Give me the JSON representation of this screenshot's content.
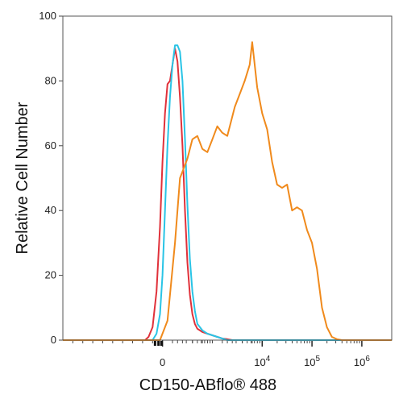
{
  "chart_data": {
    "type": "line",
    "title": "",
    "xlabel": "CD150-ABflo® 488",
    "ylabel": "Relative Cell Number",
    "ylim": [
      0,
      100
    ],
    "x_scale": "biexponential",
    "x_ticks": [
      {
        "label": "0",
        "exp": ""
      },
      {
        "label": "10",
        "exp": "4"
      },
      {
        "label": "10",
        "exp": "5"
      },
      {
        "label": "10",
        "exp": "6"
      }
    ],
    "y_ticks": [
      "0",
      "20",
      "40",
      "60",
      "80",
      "100"
    ],
    "grid": false,
    "legend": "none",
    "colors": {
      "red": "#e0313a",
      "cyan": "#29c4e6",
      "orange": "#f08a1c"
    },
    "series": [
      {
        "color": "red",
        "x": [
          -0.35,
          -0.28,
          -0.2,
          -0.12,
          -0.05,
          0.0,
          0.05,
          0.1,
          0.15,
          0.2,
          0.25,
          0.3,
          0.35,
          0.4,
          0.45,
          0.5,
          0.55,
          0.6,
          0.65,
          0.7,
          0.8,
          0.9,
          1.0,
          1.1,
          1.2,
          1.3,
          1.4
        ],
        "y": [
          0,
          1,
          4,
          15,
          35,
          55,
          70,
          79,
          80,
          85,
          90,
          86,
          75,
          60,
          40,
          24,
          14,
          8,
          5,
          3.5,
          2.5,
          2,
          1.5,
          1,
          0.5,
          0.3,
          0
        ]
      },
      {
        "color": "cyan",
        "x": [
          -0.2,
          -0.12,
          -0.05,
          0.0,
          0.05,
          0.1,
          0.15,
          0.2,
          0.25,
          0.3,
          0.35,
          0.4,
          0.45,
          0.5,
          0.55,
          0.6,
          0.65,
          0.7,
          0.8,
          0.9,
          1.0,
          1.1,
          1.2,
          1.3
        ],
        "y": [
          0,
          2,
          8,
          20,
          40,
          60,
          75,
          85,
          91,
          91,
          89,
          80,
          62,
          42,
          25,
          15,
          9,
          5,
          3,
          2,
          1.5,
          1,
          0.5,
          0
        ]
      },
      {
        "color": "orange",
        "x": [
          -0.05,
          0.1,
          0.25,
          0.35,
          0.5,
          0.6,
          0.7,
          0.8,
          0.9,
          1.0,
          1.1,
          1.2,
          1.3,
          1.35,
          1.45,
          1.55,
          1.65,
          1.75,
          1.8,
          1.9,
          2.0,
          2.1,
          2.2,
          2.3,
          2.4,
          2.5,
          2.6,
          2.7,
          2.8,
          2.9,
          3.0,
          3.1,
          3.2,
          3.3,
          3.4,
          3.5,
          3.6,
          3.7,
          3.8
        ],
        "y": [
          0,
          6,
          30,
          50,
          56,
          62,
          63,
          59,
          58,
          62,
          66,
          64,
          63,
          66,
          72,
          76,
          80,
          85,
          92,
          78,
          70,
          65,
          55,
          48,
          47,
          48,
          40,
          41,
          40,
          34,
          30,
          22,
          10,
          4,
          1,
          0.3,
          0,
          0,
          0
        ]
      }
    ]
  }
}
